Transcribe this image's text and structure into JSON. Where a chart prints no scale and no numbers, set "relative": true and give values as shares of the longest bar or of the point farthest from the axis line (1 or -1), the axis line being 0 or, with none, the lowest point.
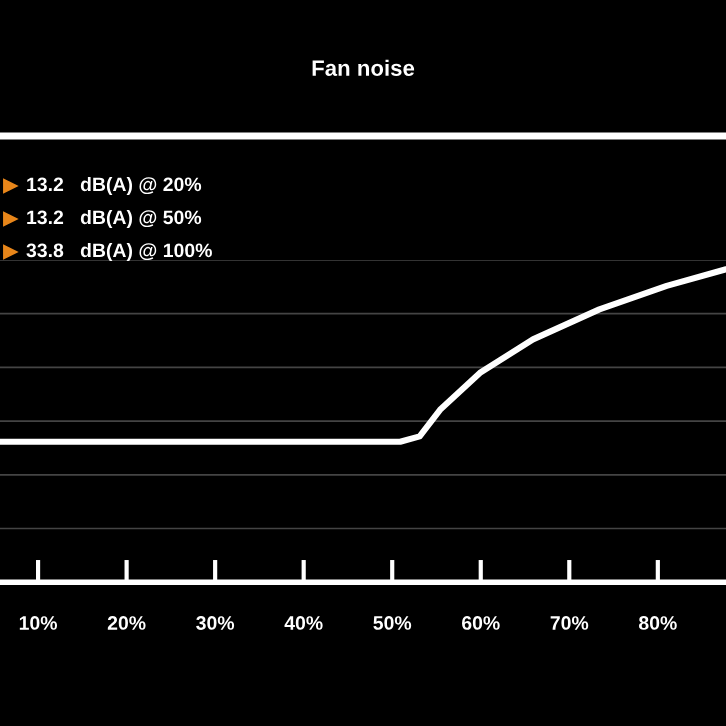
{
  "chart_data": {
    "type": "line",
    "title": "Fan noise",
    "relative": true,
    "annotations": [
      "13.2   dB(A) @ 20%",
      "13.2   dB(A) @ 50%",
      "33.8   dB(A) @ 100%"
    ],
    "series": [
      {
        "color": "#ffffff",
        "x": [
          5.7,
          50.9,
          53.1,
          55.4,
          59.9,
          65.9,
          73.4,
          81.0,
          87.7
        ],
        "values": [
          0.449,
          0.449,
          0.466,
          0.551,
          0.669,
          0.776,
          0.872,
          0.947,
          1.0
        ]
      }
    ],
    "xlim": [
      5.7,
      87.7
    ],
    "xticks": [
      {
        "value": 10,
        "label": "10%"
      },
      {
        "value": 20,
        "label": "20%"
      },
      {
        "value": 30,
        "label": "30%"
      },
      {
        "value": 40,
        "label": "40%"
      },
      {
        "value": 50,
        "label": "50%"
      },
      {
        "value": 60,
        "label": "60%"
      },
      {
        "value": 70,
        "label": "70%"
      },
      {
        "value": 80,
        "label": "80%"
      }
    ],
    "grid": "y",
    "marker": "none",
    "line_style": "solid",
    "legend": false
  }
}
